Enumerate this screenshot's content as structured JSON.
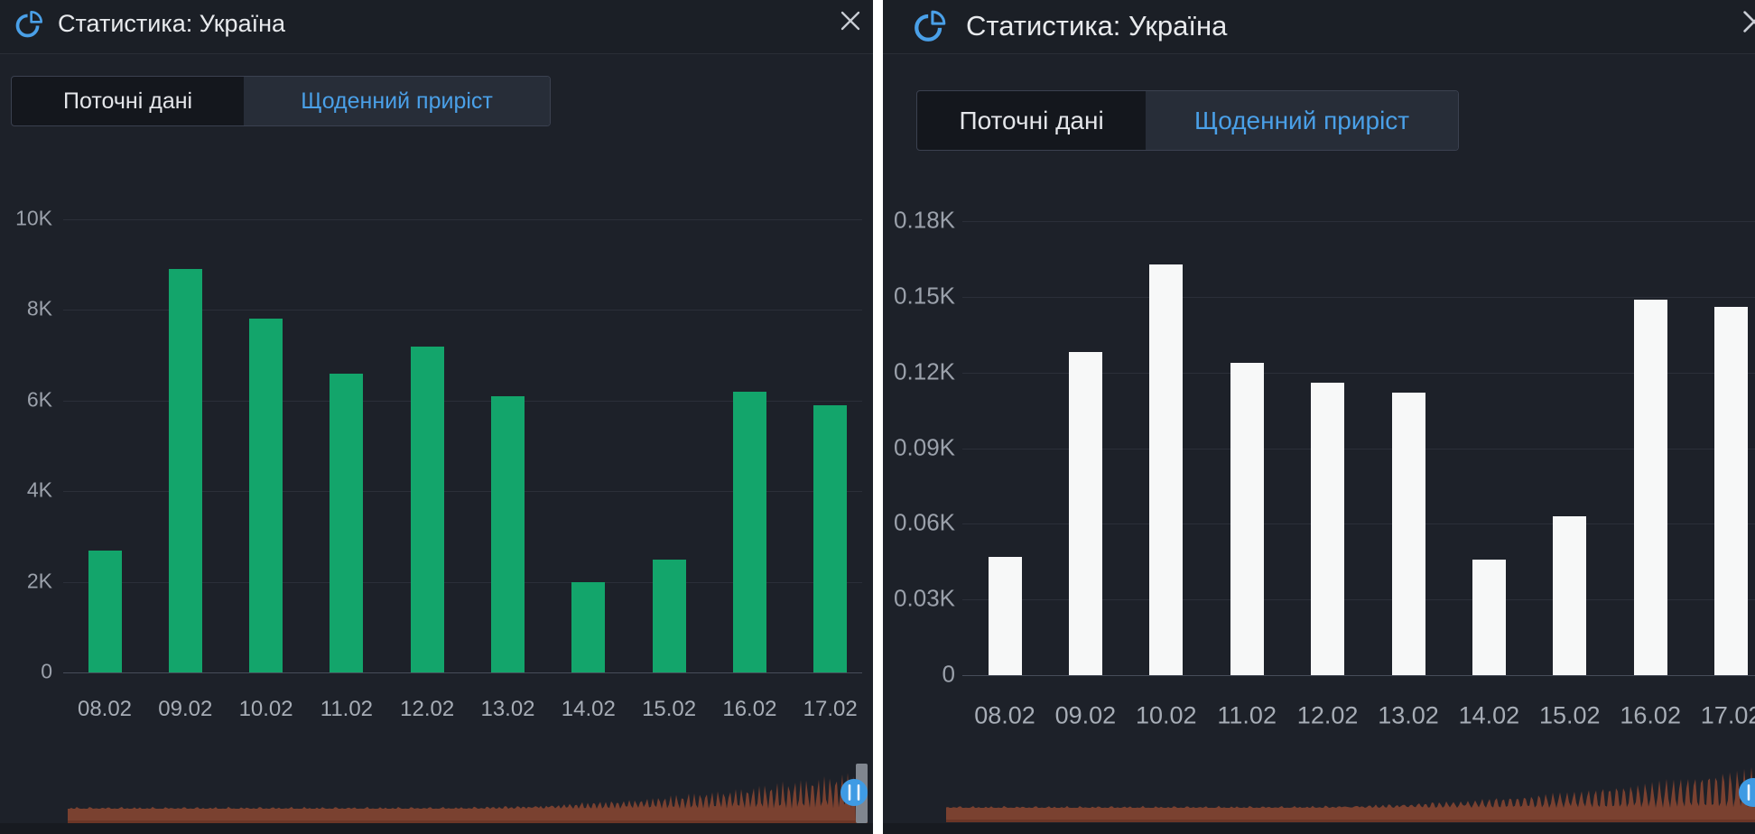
{
  "colors": {
    "background": "#1d2129",
    "accent_blue": "#4aa0e8",
    "green_bar": "#13a56b",
    "white_bar": "#f7f8f8",
    "timeline_area": "#7a4130",
    "scrubber_handle": "#3f9be4",
    "divider": "#ffffff"
  },
  "panels": [
    {
      "title": "Статистика: Україна",
      "title_icon": "pie-chart-icon",
      "close_icon": "close-icon",
      "tabs": [
        {
          "label": "Поточні дані",
          "active": false
        },
        {
          "label": "Щоденний приріст",
          "active": true
        }
      ]
    },
    {
      "title": "Статистика: Україна",
      "title_icon": "pie-chart-icon",
      "close_icon": "close-icon",
      "tabs": [
        {
          "label": "Поточні дані",
          "active": false
        },
        {
          "label": "Щоденний приріст",
          "active": true
        }
      ]
    }
  ],
  "chart_data": [
    {
      "type": "bar",
      "title": "Щоденний приріст",
      "categories": [
        "08.02",
        "09.02",
        "10.02",
        "11.02",
        "12.02",
        "13.02",
        "14.02",
        "15.02",
        "16.02",
        "17.02"
      ],
      "values": [
        2700,
        8900,
        7800,
        6600,
        7200,
        6100,
        2000,
        2500,
        6200,
        5900
      ],
      "yticks": [
        {
          "v": 0,
          "label": "0"
        },
        {
          "v": 2000,
          "label": "2K"
        },
        {
          "v": 4000,
          "label": "4K"
        },
        {
          "v": 6000,
          "label": "6K"
        },
        {
          "v": 8000,
          "label": "8K"
        },
        {
          "v": 10000,
          "label": "10K"
        }
      ],
      "ylim": [
        0,
        10400
      ],
      "xlabel": "",
      "ylabel": "",
      "grid": true,
      "legend": "none",
      "bar_color": "#13a56b"
    },
    {
      "type": "bar",
      "title": "Щоденний приріст",
      "categories": [
        "08.02",
        "09.02",
        "10.02",
        "11.02",
        "12.02",
        "13.02",
        "14.02",
        "15.02",
        "16.02",
        "17.02"
      ],
      "values": [
        47,
        128,
        163,
        124,
        116,
        112,
        46,
        63,
        149,
        146
      ],
      "yticks": [
        {
          "v": 0,
          "label": "0"
        },
        {
          "v": 30,
          "label": "0.03K"
        },
        {
          "v": 60,
          "label": "0.06K"
        },
        {
          "v": 90,
          "label": "0.09K"
        },
        {
          "v": 120,
          "label": "0.12K"
        },
        {
          "v": 150,
          "label": "0.15K"
        },
        {
          "v": 180,
          "label": "0.18K"
        }
      ],
      "ylim": [
        0,
        187
      ],
      "xlabel": "",
      "ylabel": "",
      "grid": true,
      "legend": "none",
      "bar_color": "#f7f8f8"
    }
  ]
}
